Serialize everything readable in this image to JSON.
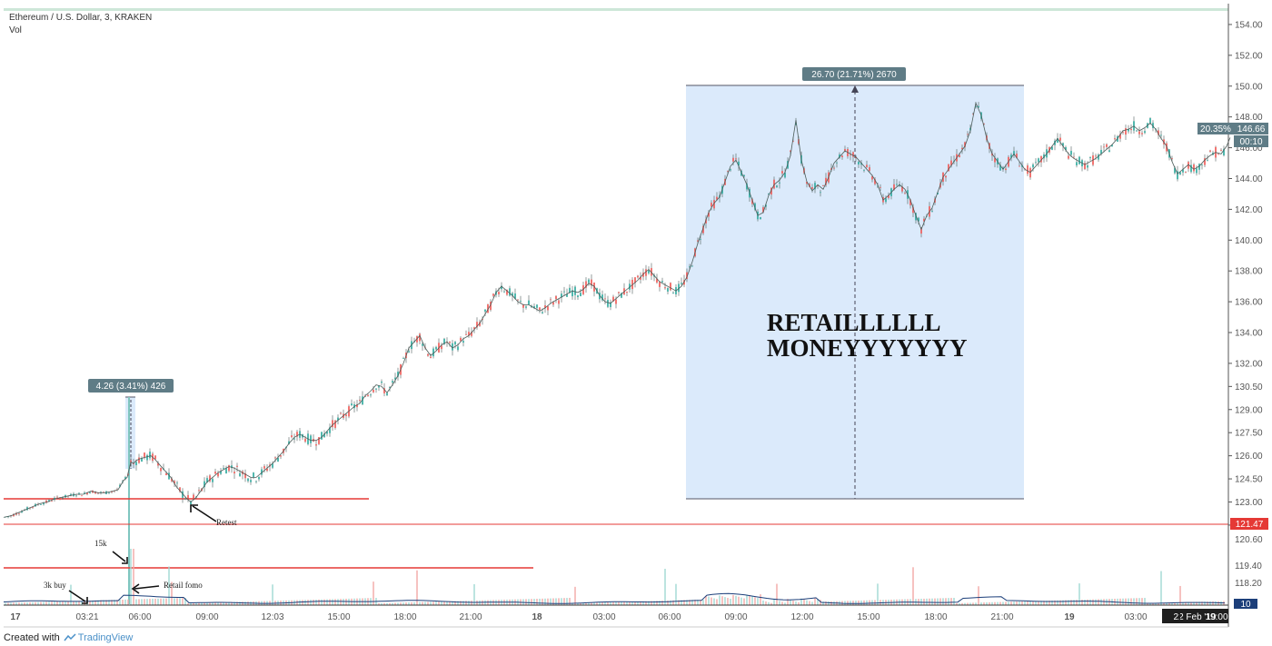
{
  "header": {
    "symbol_line": "Ethereum / U.S. Dollar, 3, KRAKEN",
    "volume_label": "Vol"
  },
  "footer": {
    "created_with": "Created with",
    "brand": "TradingView"
  },
  "colors": {
    "accent_blue": "#4a90c8",
    "support_line": "#e53935",
    "measure_box": "#dbeafb",
    "measure_tag": "#5f7c86",
    "candle_up": "#26a69a",
    "candle_down": "#ef5350",
    "volume_ma": "#1c3f7a",
    "top_band": "#cde7d8"
  },
  "chart_data": {
    "type": "line",
    "series": [
      {
        "values": [
          [
            0,
            122.0
          ],
          [
            8,
            122.1
          ],
          [
            16,
            122.3
          ],
          [
            24,
            122.5
          ],
          [
            32,
            122.7
          ],
          [
            40,
            122.9
          ],
          [
            48,
            123.0
          ],
          [
            56,
            123.2
          ],
          [
            64,
            123.3
          ],
          [
            72,
            123.4
          ],
          [
            80,
            123.5
          ],
          [
            88,
            123.5
          ],
          [
            96,
            123.7
          ],
          [
            104,
            123.6
          ],
          [
            112,
            123.6
          ],
          [
            120,
            123.7
          ],
          [
            126,
            123.8
          ],
          [
            132,
            124.4
          ],
          [
            136,
            124.6
          ],
          [
            140,
            125.6
          ],
          [
            143,
            125.5
          ],
          [
            146,
            125.7
          ],
          [
            150,
            125.8
          ],
          [
            156,
            125.9
          ],
          [
            162,
            126.0
          ],
          [
            166,
            125.8
          ],
          [
            172,
            125.4
          ],
          [
            178,
            125.0
          ],
          [
            184,
            124.6
          ],
          [
            190,
            124.0
          ],
          [
            196,
            123.6
          ],
          [
            202,
            123.2
          ],
          [
            206,
            123.0
          ],
          [
            212,
            123.3
          ],
          [
            218,
            123.8
          ],
          [
            224,
            124.3
          ],
          [
            230,
            124.6
          ],
          [
            236,
            124.9
          ],
          [
            242,
            125.1
          ],
          [
            248,
            125.3
          ],
          [
            254,
            125.2
          ],
          [
            260,
            125.0
          ],
          [
            266,
            124.8
          ],
          [
            272,
            124.6
          ],
          [
            278,
            124.6
          ],
          [
            284,
            124.9
          ],
          [
            290,
            125.2
          ],
          [
            296,
            125.5
          ],
          [
            302,
            125.9
          ],
          [
            308,
            126.3
          ],
          [
            314,
            126.8
          ],
          [
            320,
            127.2
          ],
          [
            326,
            127.4
          ],
          [
            332,
            127.2
          ],
          [
            338,
            127.0
          ],
          [
            344,
            127.0
          ],
          [
            350,
            127.2
          ],
          [
            356,
            127.6
          ],
          [
            362,
            128.0
          ],
          [
            368,
            128.3
          ],
          [
            374,
            128.6
          ],
          [
            380,
            128.9
          ],
          [
            386,
            129.2
          ],
          [
            392,
            129.4
          ],
          [
            398,
            129.9
          ],
          [
            404,
            130.2
          ],
          [
            410,
            130.6
          ],
          [
            416,
            130.5
          ],
          [
            422,
            130.1
          ],
          [
            428,
            130.6
          ],
          [
            434,
            131.2
          ],
          [
            440,
            132.0
          ],
          [
            446,
            133.0
          ],
          [
            452,
            133.4
          ],
          [
            458,
            133.8
          ],
          [
            464,
            133.0
          ],
          [
            470,
            132.5
          ],
          [
            476,
            132.8
          ],
          [
            482,
            133.2
          ],
          [
            488,
            133.4
          ],
          [
            494,
            133.0
          ],
          [
            500,
            133.2
          ],
          [
            506,
            133.6
          ],
          [
            512,
            133.8
          ],
          [
            518,
            134.2
          ],
          [
            524,
            134.6
          ],
          [
            530,
            135.2
          ],
          [
            536,
            135.8
          ],
          [
            542,
            136.6
          ],
          [
            548,
            137.0
          ],
          [
            554,
            136.7
          ],
          [
            560,
            136.4
          ],
          [
            566,
            136.0
          ],
          [
            572,
            135.8
          ],
          [
            578,
            135.8
          ],
          [
            584,
            135.6
          ],
          [
            590,
            135.4
          ],
          [
            596,
            135.6
          ],
          [
            602,
            135.9
          ],
          [
            608,
            136.1
          ],
          [
            614,
            136.3
          ],
          [
            620,
            136.5
          ],
          [
            626,
            136.7
          ],
          [
            632,
            136.6
          ],
          [
            638,
            136.8
          ],
          [
            644,
            137.2
          ],
          [
            650,
            137.0
          ],
          [
            656,
            136.4
          ],
          [
            662,
            136.0
          ],
          [
            668,
            135.9
          ],
          [
            674,
            136.2
          ],
          [
            680,
            136.5
          ],
          [
            686,
            136.8
          ],
          [
            692,
            137.1
          ],
          [
            698,
            137.4
          ],
          [
            704,
            137.8
          ],
          [
            710,
            138.1
          ],
          [
            716,
            137.7
          ],
          [
            722,
            137.3
          ],
          [
            728,
            137.1
          ],
          [
            734,
            136.9
          ],
          [
            740,
            136.7
          ],
          [
            746,
            137.0
          ],
          [
            752,
            137.6
          ],
          [
            758,
            138.6
          ],
          [
            764,
            139.8
          ],
          [
            770,
            140.8
          ],
          [
            776,
            141.8
          ],
          [
            782,
            142.4
          ],
          [
            788,
            142.8
          ],
          [
            794,
            143.8
          ],
          [
            800,
            144.8
          ],
          [
            806,
            145.2
          ],
          [
            812,
            144.4
          ],
          [
            818,
            143.6
          ],
          [
            824,
            142.6
          ],
          [
            830,
            141.6
          ],
          [
            836,
            141.8
          ],
          [
            842,
            142.9
          ],
          [
            848,
            143.6
          ],
          [
            854,
            143.9
          ],
          [
            860,
            144.4
          ],
          [
            866,
            145.5
          ],
          [
            872,
            147.8
          ],
          [
            878,
            145.2
          ],
          [
            884,
            143.8
          ],
          [
            890,
            143.2
          ],
          [
            896,
            143.6
          ],
          [
            902,
            143.3
          ],
          [
            908,
            144.1
          ],
          [
            914,
            145.0
          ],
          [
            920,
            145.4
          ],
          [
            926,
            145.8
          ],
          [
            932,
            145.6
          ],
          [
            938,
            145.4
          ],
          [
            944,
            145.0
          ],
          [
            950,
            144.6
          ],
          [
            956,
            144.2
          ],
          [
            962,
            143.6
          ],
          [
            968,
            142.6
          ],
          [
            974,
            142.9
          ],
          [
            980,
            143.3
          ],
          [
            986,
            143.6
          ],
          [
            992,
            143.3
          ],
          [
            998,
            142.6
          ],
          [
            1004,
            141.6
          ],
          [
            1010,
            140.7
          ],
          [
            1016,
            141.6
          ],
          [
            1022,
            142.1
          ],
          [
            1028,
            143.1
          ],
          [
            1034,
            144.1
          ],
          [
            1040,
            144.6
          ],
          [
            1046,
            145.1
          ],
          [
            1052,
            145.6
          ],
          [
            1058,
            146.1
          ],
          [
            1064,
            147.1
          ],
          [
            1070,
            148.9
          ],
          [
            1076,
            148.1
          ],
          [
            1082,
            146.6
          ],
          [
            1088,
            145.6
          ],
          [
            1094,
            145.1
          ],
          [
            1100,
            144.6
          ],
          [
            1106,
            145.1
          ],
          [
            1112,
            145.6
          ],
          [
            1118,
            145.1
          ],
          [
            1124,
            144.6
          ],
          [
            1130,
            144.4
          ],
          [
            1136,
            144.8
          ],
          [
            1142,
            145.2
          ],
          [
            1148,
            145.6
          ],
          [
            1154,
            146.1
          ],
          [
            1160,
            146.6
          ],
          [
            1166,
            146.1
          ],
          [
            1172,
            145.6
          ],
          [
            1178,
            145.3
          ],
          [
            1184,
            145.1
          ],
          [
            1190,
            144.9
          ],
          [
            1196,
            145.1
          ],
          [
            1202,
            145.3
          ],
          [
            1208,
            145.6
          ],
          [
            1214,
            145.9
          ],
          [
            1220,
            146.2
          ],
          [
            1226,
            146.6
          ],
          [
            1232,
            147.1
          ],
          [
            1238,
            147.2
          ],
          [
            1244,
            147.4
          ],
          [
            1250,
            147.1
          ],
          [
            1256,
            147.3
          ],
          [
            1262,
            147.6
          ],
          [
            1268,
            147.2
          ],
          [
            1274,
            146.6
          ],
          [
            1280,
            146.1
          ],
          [
            1286,
            145.1
          ],
          [
            1292,
            144.3
          ],
          [
            1298,
            144.6
          ],
          [
            1304,
            144.9
          ],
          [
            1310,
            144.6
          ],
          [
            1316,
            144.8
          ],
          [
            1322,
            145.2
          ],
          [
            1328,
            145.5
          ],
          [
            1334,
            145.7
          ],
          [
            1340,
            145.6
          ],
          [
            1346,
            146.1
          ],
          [
            1350,
            146.66
          ]
        ]
      }
    ],
    "y_axis": {
      "ylim": [
        121.2,
        155.0
      ],
      "ticks": [
        "154.00",
        "152.00",
        "150.00",
        "148.00",
        "146.00",
        "144.00",
        "142.00",
        "140.00",
        "138.00",
        "136.00",
        "134.00",
        "132.00",
        "130.50",
        "129.00",
        "127.50",
        "126.00",
        "124.50",
        "123.00",
        "121.50"
      ]
    },
    "volume_axis": {
      "ticks": [
        "120.60",
        "119.40",
        "118.20"
      ],
      "bottom_badge": "10"
    },
    "x_axis": {
      "ticks": [
        "17",
        "03:21",
        "06:00",
        "09:00",
        "12:03",
        "15:00",
        "18:00",
        "21:00",
        "18",
        "03:00",
        "06:00",
        "09:00",
        "12:00",
        "15:00",
        "18:00",
        "21:00",
        "19",
        "03:00",
        "19:00"
      ],
      "cursor_date": "22 Feb '19"
    },
    "price_tags": {
      "current_change": "20.35%",
      "current_price": "146.66",
      "countdown": "00:10",
      "support_price": "121.47"
    },
    "measures": [
      {
        "label": "4.26 (3.41%) 426",
        "from": 124.74,
        "to": 129.0
      },
      {
        "label": "26.70 (21.71%) 2670",
        "from": 123.0,
        "to": 149.7
      }
    ],
    "support_levels": [
      123.0,
      121.47
    ],
    "annotations": {
      "retest": "Retest",
      "fifteen_k": "15k",
      "three_k_buy": "3k buy",
      "retail_fomo": "Retail fomo",
      "retail_money_line1": "RETAILLLLLL",
      "retail_money_line2": "MONEYYYYYYY"
    },
    "grid": false,
    "legend": "top-left"
  }
}
